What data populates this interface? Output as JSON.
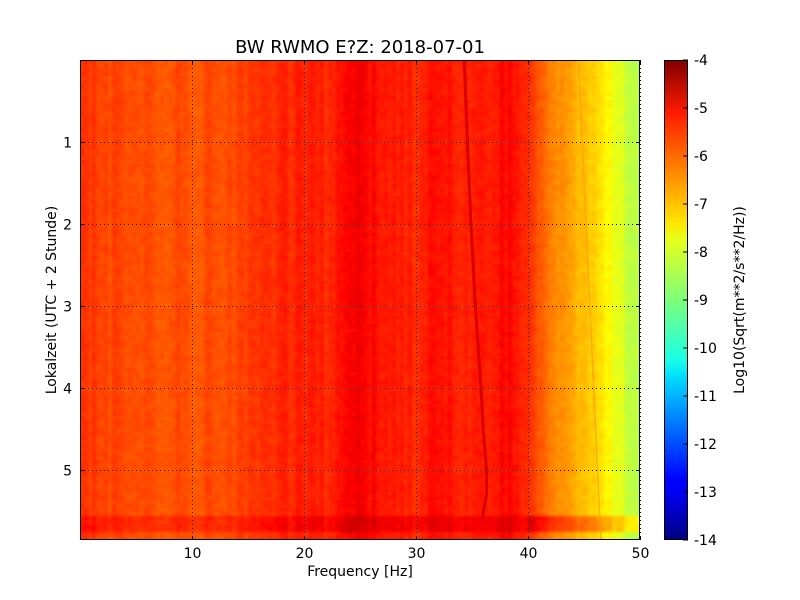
{
  "chart_data": {
    "type": "heatmap",
    "title": "BW RWMO E?Z: 2018-07-01",
    "xlabel": "Frequency [Hz]",
    "ylabel": "Lokalzeit (UTC + 2 Stunde)",
    "xlim": [
      0,
      50
    ],
    "ylim": [
      5.85,
      0
    ],
    "x_ticks": [
      "10",
      "20",
      "30",
      "40",
      "50"
    ],
    "y_ticks": [
      "1",
      "2",
      "3",
      "4",
      "5"
    ],
    "grid": true,
    "colorbar": {
      "label": "Log10(Sqrt(m**2/s**2/Hz))",
      "colormap": "jet",
      "range": [
        -14,
        -4
      ],
      "ticks": [
        "-4",
        "-5",
        "-6",
        "-7",
        "-8",
        "-9",
        "-10",
        "-11",
        "-12",
        "-13",
        "-14"
      ]
    },
    "frequency_profile": {
      "frequency_hz": [
        0,
        2,
        5,
        10,
        15,
        20,
        22,
        25,
        28,
        30,
        32,
        35,
        38,
        40,
        41,
        42,
        44,
        46,
        48,
        50
      ],
      "log10_amplitude": [
        -5.7,
        -5.9,
        -6.0,
        -6.0,
        -5.9,
        -5.5,
        -5.6,
        -5.2,
        -5.5,
        -5.6,
        -5.4,
        -5.6,
        -5.3,
        -5.6,
        -6.2,
        -6.5,
        -6.9,
        -7.4,
        -8.0,
        -8.6
      ]
    },
    "tonal_line": {
      "time_h": [
        0.0,
        1.0,
        2.0,
        3.0,
        4.0,
        4.5,
        5.0,
        5.3,
        5.5,
        5.6
      ],
      "frequency_hz": [
        34.3,
        34.6,
        34.9,
        35.3,
        35.8,
        36.0,
        36.3,
        36.3,
        36.0,
        36.0
      ],
      "log10_amplitude": -4.6
    },
    "faint_line": {
      "time_h": [
        0.0,
        5.85
      ],
      "frequency_hz": [
        44.5,
        46.5
      ]
    },
    "disturbance_band": {
      "time_h": [
        5.55,
        5.75
      ]
    }
  }
}
